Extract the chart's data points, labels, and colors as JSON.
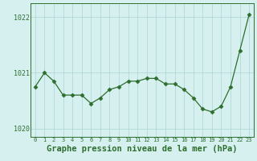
{
  "x": [
    0,
    1,
    2,
    3,
    4,
    5,
    6,
    7,
    8,
    9,
    10,
    11,
    12,
    13,
    14,
    15,
    16,
    17,
    18,
    19,
    20,
    21,
    22,
    23
  ],
  "y": [
    1020.75,
    1021.0,
    1020.85,
    1020.6,
    1020.6,
    1020.6,
    1020.45,
    1020.55,
    1020.7,
    1020.75,
    1020.85,
    1020.85,
    1020.9,
    1020.9,
    1020.8,
    1020.8,
    1020.7,
    1020.55,
    1020.35,
    1020.3,
    1020.4,
    1020.75,
    1021.4,
    1022.05
  ],
  "line_color": "#2d6e2d",
  "marker": "D",
  "marker_size": 2.5,
  "bg_color": "#d6f0f0",
  "grid_color": "#aad4d4",
  "axis_color": "#2d6e2d",
  "tick_color": "#2d6e2d",
  "title": "Graphe pression niveau de la mer (hPa)",
  "title_fontsize": 7.5,
  "ylabel_ticks": [
    1020,
    1021,
    1022
  ],
  "ylim": [
    1019.85,
    1022.25
  ],
  "xlim": [
    -0.5,
    23.5
  ]
}
